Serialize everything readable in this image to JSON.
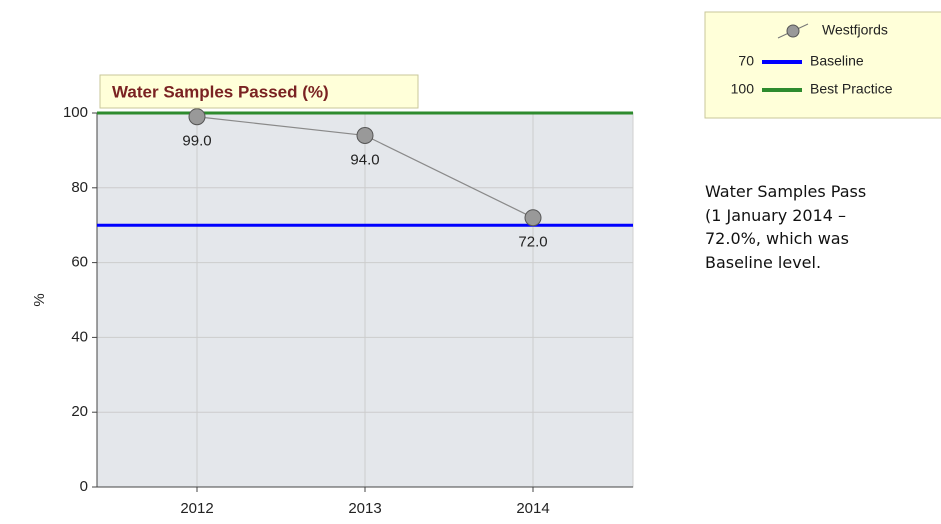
{
  "chart_data": {
    "type": "line",
    "title": "Water Samples Passed (%)",
    "ylabel": "%",
    "categories": [
      "2012",
      "2013",
      "2014"
    ],
    "series": [
      {
        "name": "Westfjords",
        "color": "#999999",
        "values": [
          99,
          94,
          72
        ],
        "value_labels": [
          "99.0",
          "94.0",
          "72.0"
        ]
      }
    ],
    "reference_lines": [
      {
        "name": "Baseline",
        "value": 70,
        "color": "#0000ff"
      },
      {
        "name": "Best Practice",
        "value": 100,
        "color": "#2e8b2e"
      }
    ],
    "ylim": [
      0,
      100
    ],
    "yticks": [
      0,
      20,
      40,
      60,
      80,
      100
    ],
    "grid": true
  },
  "description": {
    "lines": [
      "Water Samples Pass",
      "(1 January 2014 –",
      "72.0%, which was",
      "Baseline level."
    ]
  }
}
